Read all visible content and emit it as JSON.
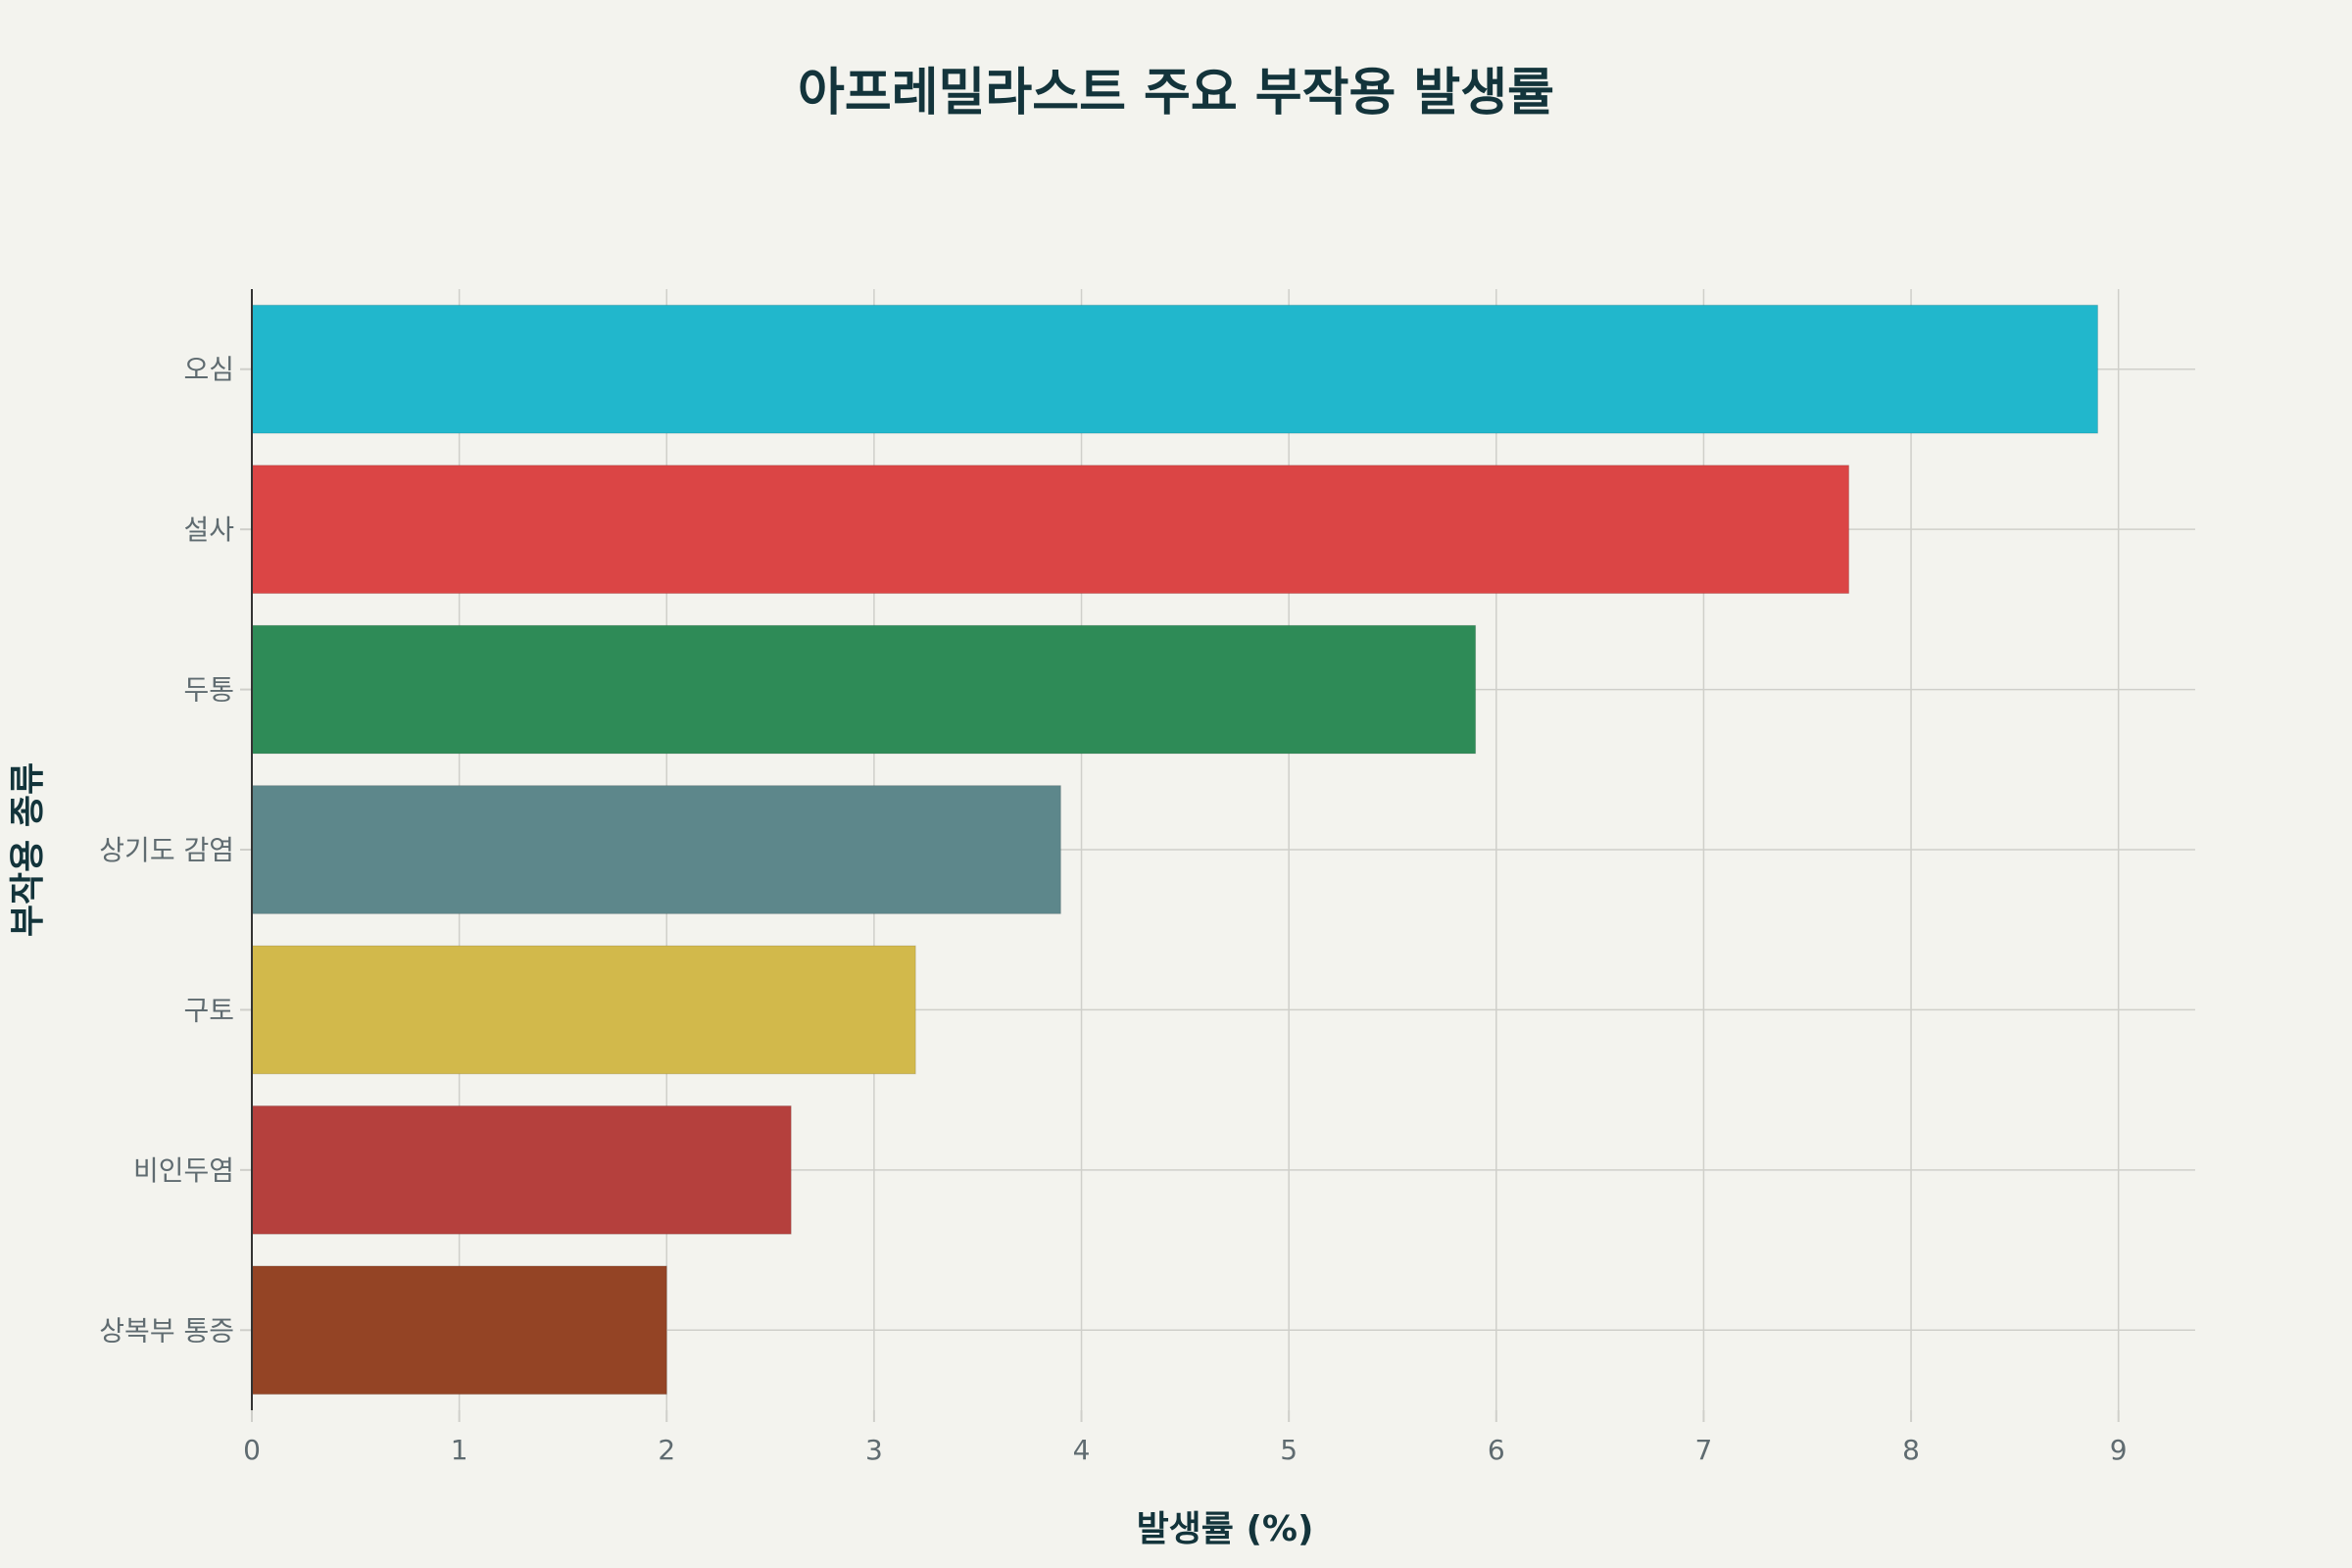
{
  "chart_data": {
    "type": "bar",
    "orientation": "horizontal",
    "title": "아프레밀라스트 주요 부작용 발생률",
    "xlabel": "발생률 (%)",
    "ylabel": "부작용 종류",
    "categories": [
      "오심",
      "설사",
      "두통",
      "상기도 감염",
      "구토",
      "비인두염",
      "상복부 통증"
    ],
    "values": [
      8.9,
      7.7,
      5.9,
      3.9,
      3.2,
      2.6,
      2.0
    ],
    "colors": [
      "#21b7cc",
      "#db4545",
      "#2e8b57",
      "#5d878b",
      "#d2b94b",
      "#b5403d",
      "#944425"
    ],
    "xlim": [
      0,
      9.37
    ],
    "xticks": [
      "0",
      "1",
      "2",
      "3",
      "4",
      "5",
      "6",
      "7",
      "8",
      "9"
    ],
    "grid": true,
    "legend": "none"
  }
}
